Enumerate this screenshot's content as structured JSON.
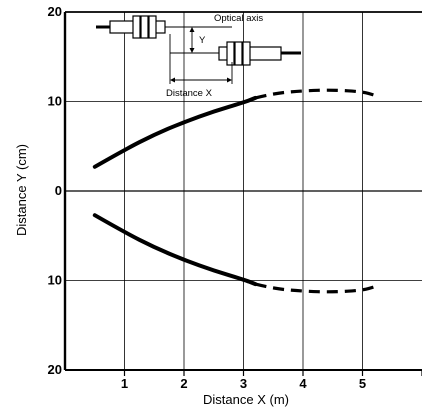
{
  "chart_data": {
    "type": "line",
    "xlabel": "Distance X (m)",
    "ylabel": "Distance Y (cm)",
    "xlim": [
      0,
      6
    ],
    "ylim": [
      -20,
      20
    ],
    "x_ticks": [
      1,
      2,
      3,
      4,
      5
    ],
    "x_tick_labels": [
      "1",
      "2",
      "3",
      "4",
      "5"
    ],
    "y_ticks": [
      20,
      10,
      0,
      -10,
      -20
    ],
    "y_tick_labels": [
      "20",
      "10",
      "0",
      "10",
      "20"
    ],
    "grid": true,
    "series": [
      {
        "style": "solid",
        "x": [
          0.5,
          1.0,
          1.5,
          2.0,
          2.5,
          3.0,
          3.2
        ],
        "y": [
          2.7,
          4.6,
          6.3,
          7.7,
          8.9,
          9.9,
          10.4
        ]
      },
      {
        "style": "dashed",
        "x": [
          3.2,
          3.5,
          4.0,
          4.5,
          5.0,
          5.2
        ],
        "y": [
          10.4,
          10.9,
          11.2,
          11.3,
          11.1,
          10.7
        ]
      },
      {
        "style": "solid",
        "x": [
          0.5,
          1.0,
          1.5,
          2.0,
          2.5,
          3.0,
          3.2
        ],
        "y": [
          -2.7,
          -4.6,
          -6.3,
          -7.7,
          -8.9,
          -9.9,
          -10.4
        ]
      },
      {
        "style": "dashed",
        "x": [
          3.2,
          3.5,
          4.0,
          4.5,
          5.0,
          5.2
        ],
        "y": [
          -10.4,
          -10.9,
          -11.2,
          -11.3,
          -11.1,
          -10.7
        ]
      }
    ]
  },
  "diagram": {
    "optical_axis_label": "Optical axis",
    "y_label": "Y",
    "distance_x_label": "Distance X"
  }
}
